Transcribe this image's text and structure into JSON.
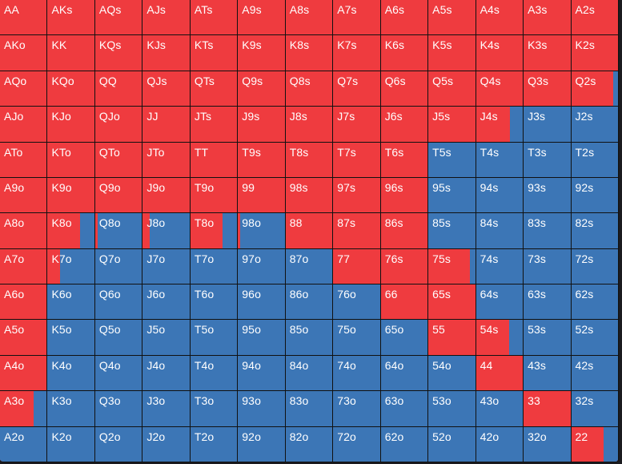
{
  "colors": {
    "raise": "#ef3b3f",
    "fold": "#3c76b6",
    "grid_line": "#111111"
  },
  "hand_range": {
    "rows": [
      [
        {
          "hand": "AA",
          "raise": 1
        },
        {
          "hand": "AKs",
          "raise": 1
        },
        {
          "hand": "AQs",
          "raise": 1
        },
        {
          "hand": "AJs",
          "raise": 1
        },
        {
          "hand": "ATs",
          "raise": 1
        },
        {
          "hand": "A9s",
          "raise": 1
        },
        {
          "hand": "A8s",
          "raise": 1
        },
        {
          "hand": "A7s",
          "raise": 1
        },
        {
          "hand": "A6s",
          "raise": 1
        },
        {
          "hand": "A5s",
          "raise": 1
        },
        {
          "hand": "A4s",
          "raise": 1
        },
        {
          "hand": "A3s",
          "raise": 1
        },
        {
          "hand": "A2s",
          "raise": 1
        }
      ],
      [
        {
          "hand": "AKo",
          "raise": 1
        },
        {
          "hand": "KK",
          "raise": 1
        },
        {
          "hand": "KQs",
          "raise": 1
        },
        {
          "hand": "KJs",
          "raise": 1
        },
        {
          "hand": "KTs",
          "raise": 1
        },
        {
          "hand": "K9s",
          "raise": 1
        },
        {
          "hand": "K8s",
          "raise": 1
        },
        {
          "hand": "K7s",
          "raise": 1
        },
        {
          "hand": "K6s",
          "raise": 1
        },
        {
          "hand": "K5s",
          "raise": 1
        },
        {
          "hand": "K4s",
          "raise": 1
        },
        {
          "hand": "K3s",
          "raise": 1
        },
        {
          "hand": "K2s",
          "raise": 1
        }
      ],
      [
        {
          "hand": "AQo",
          "raise": 1
        },
        {
          "hand": "KQo",
          "raise": 1
        },
        {
          "hand": "QQ",
          "raise": 1
        },
        {
          "hand": "QJs",
          "raise": 1
        },
        {
          "hand": "QTs",
          "raise": 1
        },
        {
          "hand": "Q9s",
          "raise": 1
        },
        {
          "hand": "Q8s",
          "raise": 1
        },
        {
          "hand": "Q7s",
          "raise": 1
        },
        {
          "hand": "Q6s",
          "raise": 1
        },
        {
          "hand": "Q5s",
          "raise": 1
        },
        {
          "hand": "Q4s",
          "raise": 1
        },
        {
          "hand": "Q3s",
          "raise": 1
        },
        {
          "hand": "Q2s",
          "raise": 0.9
        }
      ],
      [
        {
          "hand": "AJo",
          "raise": 1
        },
        {
          "hand": "KJo",
          "raise": 1
        },
        {
          "hand": "QJo",
          "raise": 1
        },
        {
          "hand": "JJ",
          "raise": 1
        },
        {
          "hand": "JTs",
          "raise": 1
        },
        {
          "hand": "J9s",
          "raise": 1
        },
        {
          "hand": "J8s",
          "raise": 1
        },
        {
          "hand": "J7s",
          "raise": 1
        },
        {
          "hand": "J6s",
          "raise": 1
        },
        {
          "hand": "J5s",
          "raise": 1
        },
        {
          "hand": "J4s",
          "raise": 0.72
        },
        {
          "hand": "J3s",
          "raise": 0
        },
        {
          "hand": "J2s",
          "raise": 0
        }
      ],
      [
        {
          "hand": "ATo",
          "raise": 1
        },
        {
          "hand": "KTo",
          "raise": 1
        },
        {
          "hand": "QTo",
          "raise": 1
        },
        {
          "hand": "JTo",
          "raise": 1
        },
        {
          "hand": "TT",
          "raise": 1
        },
        {
          "hand": "T9s",
          "raise": 1
        },
        {
          "hand": "T8s",
          "raise": 1
        },
        {
          "hand": "T7s",
          "raise": 1
        },
        {
          "hand": "T6s",
          "raise": 1
        },
        {
          "hand": "T5s",
          "raise": 0
        },
        {
          "hand": "T4s",
          "raise": 0
        },
        {
          "hand": "T3s",
          "raise": 0
        },
        {
          "hand": "T2s",
          "raise": 0
        }
      ],
      [
        {
          "hand": "A9o",
          "raise": 1
        },
        {
          "hand": "K9o",
          "raise": 1
        },
        {
          "hand": "Q9o",
          "raise": 1
        },
        {
          "hand": "J9o",
          "raise": 1
        },
        {
          "hand": "T9o",
          "raise": 1
        },
        {
          "hand": "99",
          "raise": 1
        },
        {
          "hand": "98s",
          "raise": 1
        },
        {
          "hand": "97s",
          "raise": 1
        },
        {
          "hand": "96s",
          "raise": 1
        },
        {
          "hand": "95s",
          "raise": 0
        },
        {
          "hand": "94s",
          "raise": 0
        },
        {
          "hand": "93s",
          "raise": 0
        },
        {
          "hand": "92s",
          "raise": 0
        }
      ],
      [
        {
          "hand": "A8o",
          "raise": 1
        },
        {
          "hand": "K8o",
          "raise": 0.7
        },
        {
          "hand": "Q8o",
          "raise": 0.05
        },
        {
          "hand": "J8o",
          "raise": 0.15
        },
        {
          "hand": "T8o",
          "raise": 0.68
        },
        {
          "hand": "98o",
          "raise": 0.05
        },
        {
          "hand": "88",
          "raise": 1
        },
        {
          "hand": "87s",
          "raise": 1
        },
        {
          "hand": "86s",
          "raise": 1
        },
        {
          "hand": "85s",
          "raise": 0
        },
        {
          "hand": "84s",
          "raise": 0
        },
        {
          "hand": "83s",
          "raise": 0
        },
        {
          "hand": "82s",
          "raise": 0
        }
      ],
      [
        {
          "hand": "A7o",
          "raise": 1
        },
        {
          "hand": "K7o",
          "raise": 0.26
        },
        {
          "hand": "Q7o",
          "raise": 0
        },
        {
          "hand": "J7o",
          "raise": 0
        },
        {
          "hand": "T7o",
          "raise": 0
        },
        {
          "hand": "97o",
          "raise": 0
        },
        {
          "hand": "87o",
          "raise": 0
        },
        {
          "hand": "77",
          "raise": 1
        },
        {
          "hand": "76s",
          "raise": 1
        },
        {
          "hand": "75s",
          "raise": 0.88
        },
        {
          "hand": "74s",
          "raise": 0
        },
        {
          "hand": "73s",
          "raise": 0
        },
        {
          "hand": "72s",
          "raise": 0
        }
      ],
      [
        {
          "hand": "A6o",
          "raise": 1
        },
        {
          "hand": "K6o",
          "raise": 0
        },
        {
          "hand": "Q6o",
          "raise": 0
        },
        {
          "hand": "J6o",
          "raise": 0
        },
        {
          "hand": "T6o",
          "raise": 0
        },
        {
          "hand": "96o",
          "raise": 0
        },
        {
          "hand": "86o",
          "raise": 0
        },
        {
          "hand": "76o",
          "raise": 0
        },
        {
          "hand": "66",
          "raise": 1
        },
        {
          "hand": "65s",
          "raise": 1
        },
        {
          "hand": "64s",
          "raise": 0
        },
        {
          "hand": "63s",
          "raise": 0
        },
        {
          "hand": "62s",
          "raise": 0
        }
      ],
      [
        {
          "hand": "A5o",
          "raise": 1
        },
        {
          "hand": "K5o",
          "raise": 0
        },
        {
          "hand": "Q5o",
          "raise": 0
        },
        {
          "hand": "J5o",
          "raise": 0
        },
        {
          "hand": "T5o",
          "raise": 0
        },
        {
          "hand": "95o",
          "raise": 0
        },
        {
          "hand": "85o",
          "raise": 0
        },
        {
          "hand": "75o",
          "raise": 0
        },
        {
          "hand": "65o",
          "raise": 0
        },
        {
          "hand": "55",
          "raise": 1
        },
        {
          "hand": "54s",
          "raise": 0.7
        },
        {
          "hand": "53s",
          "raise": 0
        },
        {
          "hand": "52s",
          "raise": 0
        }
      ],
      [
        {
          "hand": "A4o",
          "raise": 1
        },
        {
          "hand": "K4o",
          "raise": 0
        },
        {
          "hand": "Q4o",
          "raise": 0
        },
        {
          "hand": "J4o",
          "raise": 0
        },
        {
          "hand": "T4o",
          "raise": 0
        },
        {
          "hand": "94o",
          "raise": 0
        },
        {
          "hand": "84o",
          "raise": 0
        },
        {
          "hand": "74o",
          "raise": 0
        },
        {
          "hand": "64o",
          "raise": 0
        },
        {
          "hand": "54o",
          "raise": 0
        },
        {
          "hand": "44",
          "raise": 1
        },
        {
          "hand": "43s",
          "raise": 0
        },
        {
          "hand": "42s",
          "raise": 0
        }
      ],
      [
        {
          "hand": "A3o",
          "raise": 0.72
        },
        {
          "hand": "K3o",
          "raise": 0
        },
        {
          "hand": "Q3o",
          "raise": 0
        },
        {
          "hand": "J3o",
          "raise": 0
        },
        {
          "hand": "T3o",
          "raise": 0
        },
        {
          "hand": "93o",
          "raise": 0
        },
        {
          "hand": "83o",
          "raise": 0
        },
        {
          "hand": "73o",
          "raise": 0
        },
        {
          "hand": "63o",
          "raise": 0
        },
        {
          "hand": "53o",
          "raise": 0
        },
        {
          "hand": "43o",
          "raise": 0
        },
        {
          "hand": "33",
          "raise": 1
        },
        {
          "hand": "32s",
          "raise": 0
        }
      ],
      [
        {
          "hand": "A2o",
          "raise": 0
        },
        {
          "hand": "K2o",
          "raise": 0
        },
        {
          "hand": "Q2o",
          "raise": 0
        },
        {
          "hand": "J2o",
          "raise": 0
        },
        {
          "hand": "T2o",
          "raise": 0
        },
        {
          "hand": "92o",
          "raise": 0
        },
        {
          "hand": "82o",
          "raise": 0
        },
        {
          "hand": "72o",
          "raise": 0
        },
        {
          "hand": "62o",
          "raise": 0
        },
        {
          "hand": "52o",
          "raise": 0
        },
        {
          "hand": "42o",
          "raise": 0
        },
        {
          "hand": "32o",
          "raise": 0
        },
        {
          "hand": "22",
          "raise": 0.7
        }
      ]
    ]
  }
}
